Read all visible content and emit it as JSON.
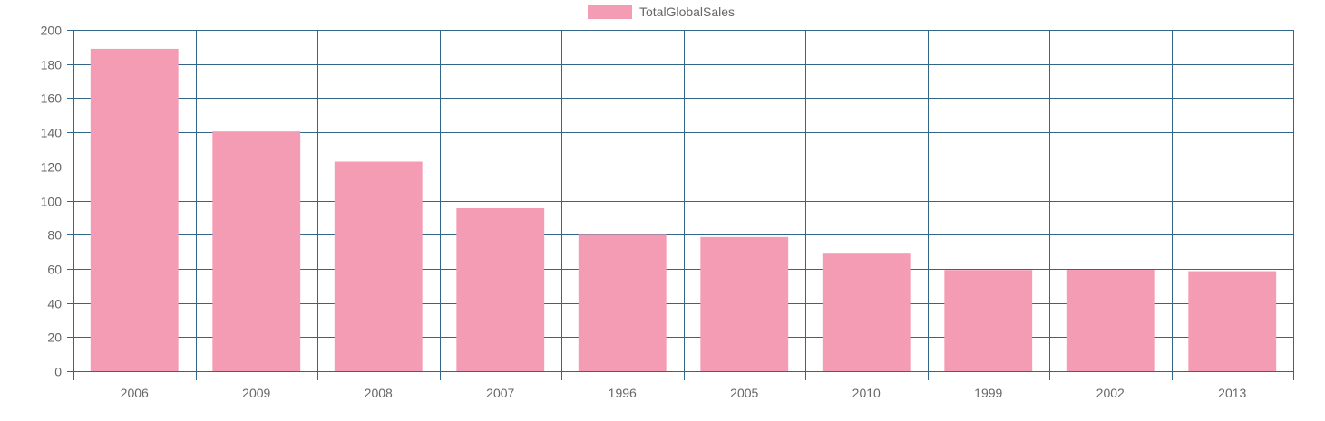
{
  "chart_data": {
    "type": "bar",
    "title": "",
    "xlabel": "",
    "ylabel": "",
    "categories": [
      "2006",
      "2009",
      "2008",
      "2007",
      "1996",
      "2005",
      "2010",
      "1999",
      "2002",
      "2013"
    ],
    "series": [
      {
        "name": "TotalGlobalSales",
        "values": [
          188.9,
          140.5,
          122.8,
          95.5,
          79.9,
          78.6,
          69.4,
          59.3,
          59.4,
          58.6
        ]
      }
    ],
    "ylim": [
      0,
      200
    ],
    "yticks": [
      "0",
      "20",
      "40",
      "60",
      "80",
      "100",
      "120",
      "140",
      "160",
      "180",
      "200"
    ],
    "grid": true,
    "legend_position": "top-center",
    "colors": {
      "bar_fill": "#f59cb5",
      "grid": "#336688",
      "tick_text": "#666666"
    }
  }
}
